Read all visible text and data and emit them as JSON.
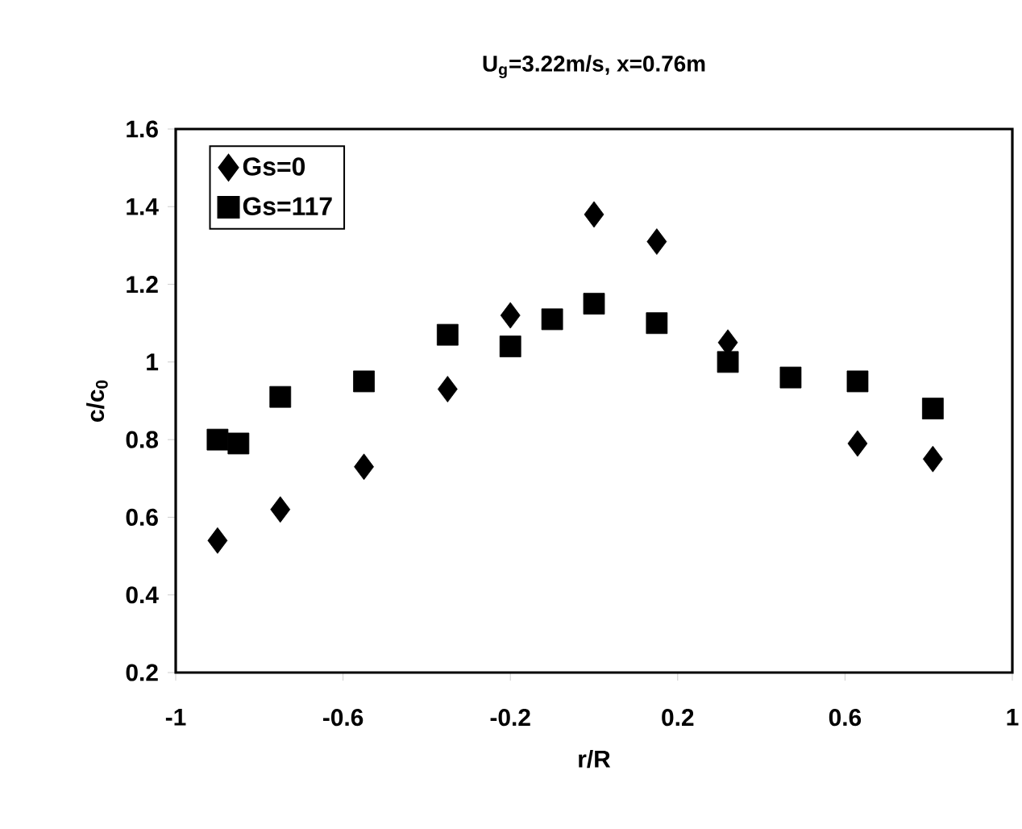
{
  "chart_data": {
    "type": "scatter",
    "title": "U$_{g}$=3.22m/s, x=0.76m",
    "xlabel": "r/R",
    "ylabel": "c/c$_{0}$",
    "xlim": [
      -1,
      1
    ],
    "xticks": [
      -1,
      -0.6,
      -0.2,
      0.2,
      0.6,
      1
    ],
    "ylim": [
      0.2,
      1.6
    ],
    "yticks": [
      0.2,
      0.4,
      0.6,
      0.8,
      1,
      1.2,
      1.4,
      1.6
    ],
    "legend": "top left",
    "grid": false,
    "series": [
      {
        "name": "Gs=0",
        "color": "#000000",
        "marker": "diamond",
        "x": [
          -0.9,
          -0.75,
          -0.55,
          -0.35,
          -0.2,
          0.0,
          0.15,
          0.32,
          0.63,
          0.81
        ],
        "values": [
          0.54,
          0.62,
          0.73,
          0.93,
          1.12,
          1.38,
          1.31,
          1.05,
          0.79,
          0.75
        ]
      },
      {
        "name": "Gs=117",
        "color": "#000000",
        "marker": "square",
        "x": [
          -0.9,
          -0.85,
          -0.75,
          -0.55,
          -0.35,
          -0.2,
          -0.1,
          0.0,
          0.15,
          0.32,
          0.47,
          0.63,
          0.81
        ],
        "values": [
          0.8,
          0.79,
          0.91,
          0.95,
          1.07,
          1.04,
          1.11,
          1.15,
          1.1,
          1.0,
          0.96,
          0.95,
          0.88
        ]
      }
    ]
  }
}
